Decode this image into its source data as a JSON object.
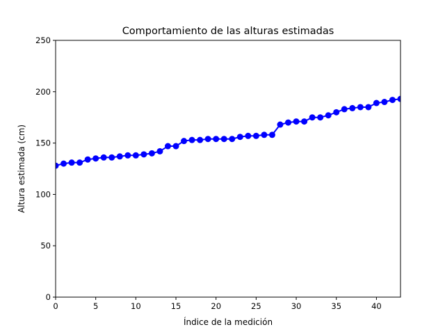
{
  "chart_data": {
    "type": "line",
    "title": "Comportamiento de las alturas estimadas",
    "xlabel": "Índice de la medición",
    "ylabel": "Altura estimada (cm)",
    "xlim": [
      0,
      43
    ],
    "ylim": [
      0,
      250
    ],
    "xticks": [
      0,
      5,
      10,
      15,
      20,
      25,
      30,
      35,
      40
    ],
    "yticks": [
      0,
      50,
      100,
      150,
      200,
      250
    ],
    "grid": false,
    "series": [
      {
        "color": "#0000ff",
        "marker": "circle",
        "x": [
          0,
          1,
          2,
          3,
          4,
          5,
          6,
          7,
          8,
          9,
          10,
          11,
          12,
          13,
          14,
          15,
          16,
          17,
          18,
          19,
          20,
          21,
          22,
          23,
          24,
          25,
          26,
          27,
          28,
          29,
          30,
          31,
          32,
          33,
          34,
          35,
          36,
          37,
          38,
          39,
          40,
          41,
          42,
          43
        ],
        "y": [
          128,
          130,
          131,
          131,
          134,
          135,
          136,
          136,
          137,
          138,
          138,
          139,
          140,
          142,
          147,
          147,
          152,
          153,
          153,
          154,
          154,
          154,
          154,
          156,
          157,
          157,
          158,
          158,
          168,
          170,
          171,
          171,
          175,
          175,
          177,
          180,
          183,
          184,
          185,
          185,
          189,
          190,
          192,
          193
        ]
      }
    ]
  }
}
